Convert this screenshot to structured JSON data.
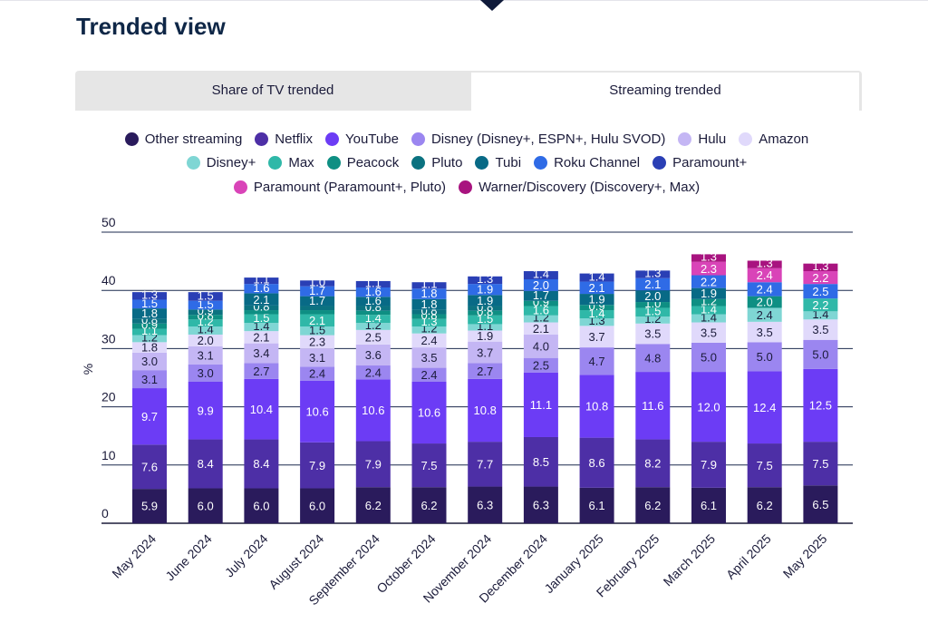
{
  "page": {
    "title": "Trended view",
    "tabs": [
      {
        "label": "Share of TV trended",
        "active": false
      },
      {
        "label": "Streaming trended",
        "active": true
      }
    ]
  },
  "chart_data": {
    "type": "bar",
    "stacked": true,
    "ylabel": "%",
    "ylim": [
      0,
      50
    ],
    "yticks": [
      0,
      10,
      20,
      30,
      40,
      50
    ],
    "grid": true,
    "legend_position": "top",
    "categories": [
      "May 2024",
      "June 2024",
      "July 2024",
      "August 2024",
      "September 2024",
      "October 2024",
      "November 2024",
      "December 2024",
      "January 2025",
      "February 2025",
      "March 2025",
      "April 2025",
      "May 2025"
    ],
    "series": [
      {
        "name": "Other streaming",
        "color": "#2a1b5c",
        "values": [
          5.9,
          6.0,
          6.0,
          6.0,
          6.2,
          6.2,
          6.3,
          6.3,
          6.1,
          6.2,
          6.1,
          6.2,
          6.5
        ]
      },
      {
        "name": "Netflix",
        "color": "#4d2fa6",
        "values": [
          7.6,
          8.4,
          8.4,
          7.9,
          7.9,
          7.5,
          7.7,
          8.5,
          8.6,
          8.2,
          7.9,
          7.5,
          7.5
        ]
      },
      {
        "name": "YouTube",
        "color": "#6c3cf5",
        "values": [
          9.7,
          9.9,
          10.4,
          10.6,
          10.6,
          10.6,
          10.8,
          11.1,
          10.8,
          11.6,
          12.0,
          12.4,
          12.5
        ]
      },
      {
        "name": "Disney (Disney+, ESPN+, Hulu SVOD)",
        "color": "#9b86f0",
        "values": [
          3.1,
          3.0,
          2.7,
          2.4,
          2.4,
          2.4,
          2.7,
          2.5,
          4.7,
          4.8,
          5.0,
          5.0,
          5.0
        ]
      },
      {
        "name": "Hulu",
        "color": "#c4b6f4",
        "values": [
          3.0,
          3.1,
          3.4,
          3.1,
          3.6,
          3.5,
          3.7,
          4.0,
          0,
          0,
          0,
          0,
          0
        ]
      },
      {
        "name": "Amazon",
        "color": "#e0d9fb",
        "values": [
          1.8,
          2.0,
          2.1,
          2.3,
          2.5,
          2.4,
          1.9,
          2.1,
          3.7,
          3.5,
          3.5,
          3.5,
          3.5
        ]
      },
      {
        "name": "Disney+",
        "color": "#7fd6d4",
        "values": [
          1.2,
          1.4,
          1.4,
          1.5,
          1.2,
          1.2,
          1.1,
          1.2,
          1.3,
          1.2,
          1.4,
          2.4,
          1.4
        ]
      },
      {
        "name": "Max",
        "color": "#2fb8a8",
        "values": [
          1.1,
          1.2,
          1.5,
          2.1,
          1.4,
          1.3,
          1.5,
          1.6,
          1.4,
          1.5,
          1.4,
          0,
          2.2
        ]
      },
      {
        "name": "Peacock",
        "color": "#0e8f83",
        "values": [
          0.9,
          0.8,
          0.7,
          0.7,
          0.7,
          0.8,
          0.8,
          0.9,
          0.9,
          1.0,
          1.2,
          2.0,
          0
        ]
      },
      {
        "name": "Pluto",
        "color": "#0b7280",
        "values": [
          0.8,
          0.9,
          0.8,
          0.7,
          0.8,
          0.8,
          0.8,
          0,
          0,
          0,
          0,
          0,
          0
        ]
      },
      {
        "name": "Tubi",
        "color": "#086a86",
        "values": [
          1.8,
          0,
          2.1,
          1.7,
          1.6,
          1.8,
          1.9,
          1.7,
          1.9,
          2.0,
          1.9,
          0,
          0
        ]
      },
      {
        "name": "Roku Channel",
        "color": "#2f6be6",
        "values": [
          1.5,
          1.5,
          1.6,
          1.7,
          1.6,
          1.8,
          1.9,
          2.0,
          2.1,
          2.1,
          2.2,
          2.4,
          2.5
        ]
      },
      {
        "name": "Paramount+",
        "color": "#2a3fb5",
        "values": [
          1.3,
          1.5,
          1.1,
          1.0,
          1.1,
          1.1,
          1.3,
          1.4,
          1.4,
          1.3,
          0,
          0,
          0
        ]
      },
      {
        "name": "Paramount (Paramount+, Pluto)",
        "color": "#d944b8",
        "values": [
          0,
          0,
          0,
          0,
          0,
          0,
          0,
          0,
          0,
          0,
          2.3,
          2.4,
          2.2
        ]
      },
      {
        "name": "Warner/Discovery (Discovery+, Max)",
        "color": "#a8137f",
        "values": [
          0,
          0,
          0,
          0,
          0,
          0,
          0,
          0,
          0,
          0,
          1.3,
          1.3,
          1.3
        ]
      }
    ]
  }
}
